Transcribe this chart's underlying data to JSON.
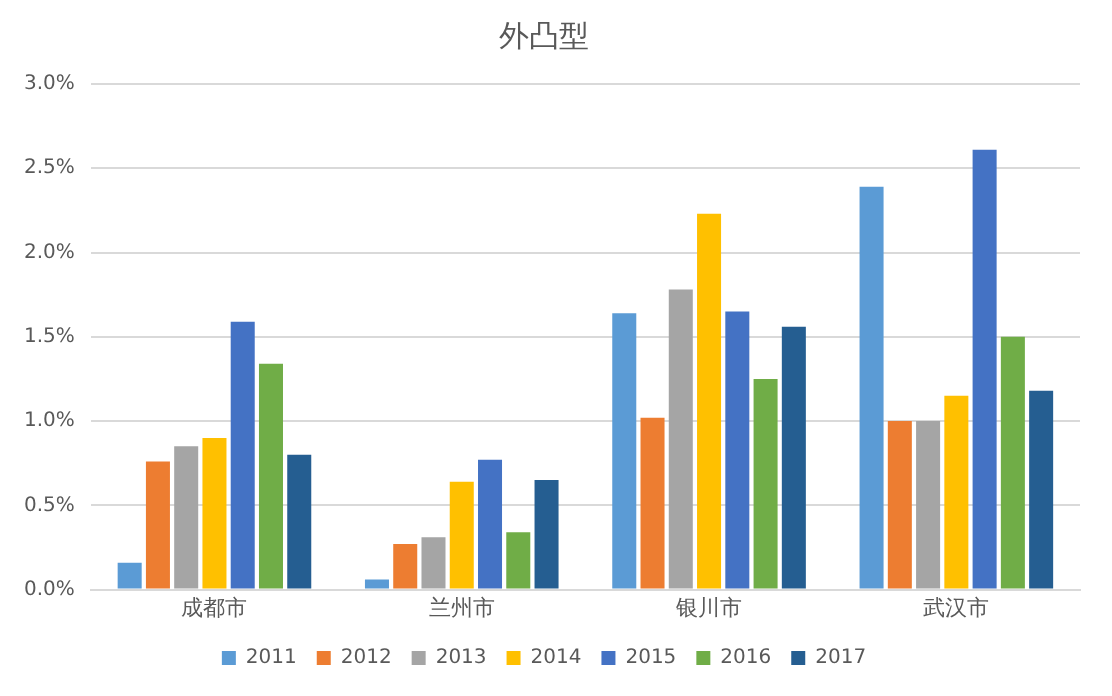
{
  "chart_data": {
    "type": "bar",
    "title": "外凸型",
    "categories": [
      "成都市",
      "兰州市",
      "银川市",
      "武汉市"
    ],
    "series": [
      {
        "name": "2011",
        "color": "#5b9bd5",
        "values": [
          0.16,
          0.06,
          1.64,
          2.39
        ]
      },
      {
        "name": "2012",
        "color": "#ed7d31",
        "values": [
          0.76,
          0.27,
          1.02,
          1.0
        ]
      },
      {
        "name": "2013",
        "color": "#a5a5a5",
        "values": [
          0.85,
          0.31,
          1.78,
          1.0
        ]
      },
      {
        "name": "2014",
        "color": "#ffc000",
        "values": [
          0.9,
          0.64,
          2.23,
          1.15
        ]
      },
      {
        "name": "2015",
        "color": "#4472c4",
        "values": [
          1.59,
          0.77,
          1.65,
          2.61
        ]
      },
      {
        "name": "2016",
        "color": "#70ad47",
        "values": [
          1.34,
          0.34,
          1.25,
          1.5
        ]
      },
      {
        "name": "2017",
        "color": "#255e91",
        "values": [
          0.8,
          0.65,
          1.56,
          1.18
        ]
      }
    ],
    "ylim": [
      0,
      3
    ],
    "yticks": [
      {
        "value": 0,
        "label": "0.0%"
      },
      {
        "value": 0.5,
        "label": "0.5%"
      },
      {
        "value": 1,
        "label": "1.0%"
      },
      {
        "value": 1.5,
        "label": "1.5%"
      },
      {
        "value": 2,
        "label": "2.0%"
      },
      {
        "value": 2.5,
        "label": "2.5%"
      },
      {
        "value": 3,
        "label": "3.0%"
      }
    ],
    "grid": "y",
    "legend": "bottom"
  }
}
